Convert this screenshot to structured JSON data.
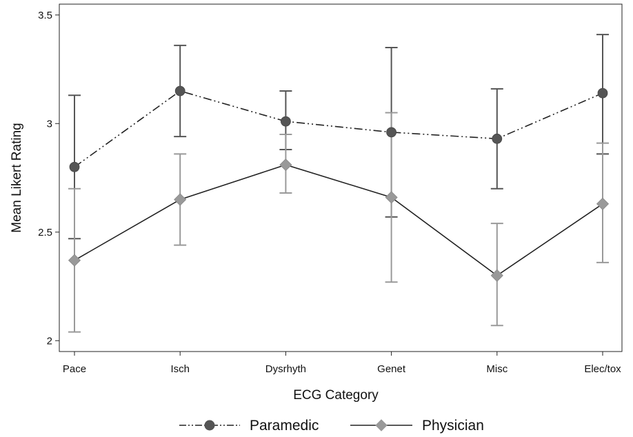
{
  "chart_data": {
    "type": "line",
    "xlabel": "ECG Category",
    "ylabel": "Mean Likert Rating",
    "categories": [
      "Pace",
      "Isch",
      "Dysrhyth",
      "Genet",
      "Misc",
      "Elec/tox"
    ],
    "ylim": [
      1.95,
      3.55
    ],
    "yticks": [
      2,
      2.5,
      3,
      3.5
    ],
    "ytick_labels": [
      "2",
      "2.5",
      "3",
      "3.5"
    ],
    "grid": false,
    "legend_position": "bottom",
    "series": [
      {
        "name": "Paramedic",
        "values": [
          2.8,
          3.15,
          3.01,
          2.96,
          2.93,
          3.14
        ],
        "lower": [
          2.47,
          2.94,
          2.88,
          2.57,
          2.7,
          2.86
        ],
        "upper": [
          3.13,
          3.36,
          3.15,
          3.35,
          3.16,
          3.41
        ],
        "marker": "circle",
        "line_style": "dash-dot-dot",
        "color": "#555555"
      },
      {
        "name": "Physician",
        "values": [
          2.37,
          2.65,
          2.81,
          2.66,
          2.3,
          2.63
        ],
        "lower": [
          2.04,
          2.44,
          2.68,
          2.27,
          2.07,
          2.36
        ],
        "upper": [
          2.7,
          2.86,
          2.95,
          3.05,
          2.54,
          2.91
        ],
        "marker": "diamond",
        "line_style": "solid",
        "color": "#999999"
      }
    ]
  }
}
